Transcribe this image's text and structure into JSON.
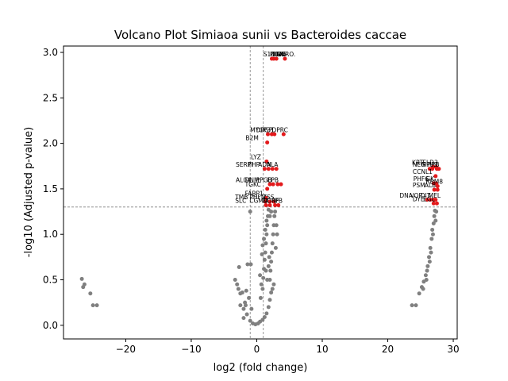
{
  "chart_data": {
    "type": "scatter",
    "title": "Volcano Plot Simiaoa sunii vs Bacteroides caccae",
    "xlabel": "log2 (fold change)",
    "ylabel": "-log10 (Adjusted p-value)",
    "xlim": [
      -29.5,
      30.6
    ],
    "ylim": [
      -0.15,
      3.07
    ],
    "xticks": [
      -20,
      -10,
      0,
      10,
      20,
      30
    ],
    "yticks": [
      0.0,
      0.5,
      1.0,
      1.5,
      2.0,
      2.5,
      3.0
    ],
    "x_tick_labels": [
      "−20",
      "−10",
      "0",
      "10",
      "20",
      "30"
    ],
    "y_tick_labels": [
      "0.0",
      "0.5",
      "1.0",
      "1.5",
      "2.0",
      "2.5",
      "3.0"
    ],
    "grid": false,
    "threshold_lines": {
      "vertical": [
        -1,
        1
      ],
      "horizontal": 1.3
    },
    "colors": {
      "significant": "#e31a1c",
      "non_significant": "#808080",
      "threshold": "#808080"
    },
    "significant_points": [
      {
        "x": 2.3,
        "y": 2.93,
        "label": "S100A6"
      },
      {
        "x": 2.6,
        "y": 2.93,
        "label": "PIGR"
      },
      {
        "x": 3.0,
        "y": 2.93,
        "label": "DCN"
      },
      {
        "x": 4.3,
        "y": 2.93,
        "label": "NCRO."
      },
      {
        "x": 1.7,
        "y": 2.1,
        "label": "MYG"
      },
      {
        "x": 2.3,
        "y": 2.1,
        "label": "DPGP"
      },
      {
        "x": 2.7,
        "y": 2.1,
        "label": "P31"
      },
      {
        "x": 4.1,
        "y": 2.1,
        "label": "DPRC"
      },
      {
        "x": 1.6,
        "y": 2.01,
        "label": "B2M"
      },
      {
        "x": 1.5,
        "y": 1.8,
        "label": "LYZ"
      },
      {
        "x": 1.2,
        "y": 1.72,
        "label": "SERPI"
      },
      {
        "x": 1.8,
        "y": 1.72,
        "label": "FHP"
      },
      {
        "x": 2.4,
        "y": 1.72,
        "label": "ADN"
      },
      {
        "x": 3.0,
        "y": 1.72,
        "label": "ALA"
      },
      {
        "x": 2.0,
        "y": 1.55,
        "label": "AL04"
      },
      {
        "x": 2.5,
        "y": 1.55,
        "label": "DNM"
      },
      {
        "x": 3.2,
        "y": 1.55,
        "label": "PPGB"
      },
      {
        "x": 3.7,
        "y": 1.55,
        "label": "EPB"
      },
      {
        "x": 1.6,
        "y": 1.5,
        "label": "TGKC"
      },
      {
        "x": 1.4,
        "y": 1.4,
        "label": "FABP1"
      },
      {
        "x": 1.3,
        "y": 1.36,
        "label": "TMB"
      },
      {
        "x": 2.0,
        "y": 1.36,
        "label": "PHFN"
      },
      {
        "x": 2.6,
        "y": 1.36,
        "label": "ZSS"
      },
      {
        "x": 1.4,
        "y": 1.32,
        "label": "SLC"
      },
      {
        "x": 2.0,
        "y": 1.32,
        "label": "CGMD"
      },
      {
        "x": 2.8,
        "y": 1.32,
        "label": "NDRF"
      },
      {
        "x": 3.3,
        "y": 1.32,
        "label": "IPB"
      },
      {
        "x": 26.9,
        "y": 1.74,
        "label": "KRT"
      },
      {
        "x": 27.4,
        "y": 1.74,
        "label": "ELD3"
      },
      {
        "x": 26.4,
        "y": 1.72,
        "label": "NEG"
      },
      {
        "x": 26.8,
        "y": 1.72,
        "label": "MPL"
      },
      {
        "x": 27.5,
        "y": 1.72,
        "label": "FRB"
      },
      {
        "x": 27.8,
        "y": 1.72,
        "label": "S"
      },
      {
        "x": 27.3,
        "y": 1.64,
        "label": "CCNL1"
      },
      {
        "x": 27.0,
        "y": 1.56,
        "label": "PHF6"
      },
      {
        "x": 27.4,
        "y": 1.56,
        "label": "GK"
      },
      {
        "x": 27.6,
        "y": 1.53,
        "label": "RBM8"
      },
      {
        "x": 27.1,
        "y": 1.49,
        "label": "PSM"
      },
      {
        "x": 27.6,
        "y": 1.49,
        "label": "ALB"
      },
      {
        "x": 26.0,
        "y": 1.38,
        "label": "DNA"
      },
      {
        "x": 26.5,
        "y": 1.38,
        "label": "VOP"
      },
      {
        "x": 27.0,
        "y": 1.38,
        "label": "DIT"
      },
      {
        "x": 27.3,
        "y": 1.38,
        "label": "MEL"
      },
      {
        "x": 27.0,
        "y": 1.34,
        "label": "DYE"
      },
      {
        "x": 27.5,
        "y": 1.34,
        "label": "EGL"
      }
    ],
    "annotations": [
      {
        "text": "S100A6",
        "x": 1.0,
        "y": 2.955
      },
      {
        "text": "PIGR",
        "x": 2.0,
        "y": 2.955
      },
      {
        "text": "DCN",
        "x": 2.4,
        "y": 2.955
      },
      {
        "text": "NCRO.",
        "x": 3.0,
        "y": 2.955
      },
      {
        "text": "MYG",
        "x": -1.0,
        "y": 2.125
      },
      {
        "text": "DPGP",
        "x": -0.1,
        "y": 2.125
      },
      {
        "text": "P31",
        "x": 1.0,
        "y": 2.125
      },
      {
        "text": "DPRC",
        "x": 2.3,
        "y": 2.125
      },
      {
        "text": "B2M",
        "x": -1.7,
        "y": 2.035
      },
      {
        "text": "LYZ",
        "x": -0.9,
        "y": 1.825
      },
      {
        "text": "SERPI",
        "x": -3.2,
        "y": 1.745
      },
      {
        "text": "FHP",
        "x": -1.3,
        "y": 1.745
      },
      {
        "text": "ADN",
        "x": 0.2,
        "y": 1.745
      },
      {
        "text": "ALA",
        "x": 1.5,
        "y": 1.745
      },
      {
        "text": "AL04",
        "x": -3.2,
        "y": 1.575
      },
      {
        "text": "DNM",
        "x": -1.8,
        "y": 1.575
      },
      {
        "text": "PPGB",
        "x": -0.1,
        "y": 1.575
      },
      {
        "text": "EPB",
        "x": 1.6,
        "y": 1.575
      },
      {
        "text": "TGKC",
        "x": -1.8,
        "y": 1.525
      },
      {
        "text": "FABP1",
        "x": -1.8,
        "y": 1.425
      },
      {
        "text": "TMB",
        "x": -3.3,
        "y": 1.385
      },
      {
        "text": "PHFN",
        "x": -1.1,
        "y": 1.385
      },
      {
        "text": "ZSS",
        "x": 0.9,
        "y": 1.385
      },
      {
        "text": "SLC",
        "x": -3.3,
        "y": 1.345
      },
      {
        "text": "CGMD",
        "x": -1.1,
        "y": 1.345
      },
      {
        "text": "NDRF",
        "x": 0.9,
        "y": 1.345
      },
      {
        "text": "IPB",
        "x": 2.5,
        "y": 1.345
      },
      {
        "text": "KRT",
        "x": 23.7,
        "y": 1.765
      },
      {
        "text": "ELD3",
        "x": 25.3,
        "y": 1.765
      },
      {
        "text": "NEG",
        "x": 23.8,
        "y": 1.745
      },
      {
        "text": "MPL",
        "x": 25.1,
        "y": 1.745
      },
      {
        "text": "FRB",
        "x": 26.1,
        "y": 1.745
      },
      {
        "text": "S",
        "x": 27.0,
        "y": 1.745
      },
      {
        "text": "CCNL1",
        "x": 23.8,
        "y": 1.665
      },
      {
        "text": "PHF6",
        "x": 23.9,
        "y": 1.585
      },
      {
        "text": "GK",
        "x": 25.8,
        "y": 1.585
      },
      {
        "text": "RBM8",
        "x": 25.8,
        "y": 1.555
      },
      {
        "text": "PSM",
        "x": 23.8,
        "y": 1.515
      },
      {
        "text": "ALB",
        "x": 25.6,
        "y": 1.515
      },
      {
        "text": "DNA",
        "x": 21.8,
        "y": 1.405
      },
      {
        "text": "VOP",
        "x": 23.4,
        "y": 1.405
      },
      {
        "text": "DIT",
        "x": 25.0,
        "y": 1.405
      },
      {
        "text": "MEL",
        "x": 26.2,
        "y": 1.405
      },
      {
        "text": "DYE",
        "x": 23.8,
        "y": 1.365
      },
      {
        "text": "EGL",
        "x": 25.4,
        "y": 1.365
      }
    ],
    "non_significant_points": [
      {
        "x": -26.7,
        "y": 0.51
      },
      {
        "x": -26.5,
        "y": 0.42
      },
      {
        "x": -26.3,
        "y": 0.45
      },
      {
        "x": -25.4,
        "y": 0.35
      },
      {
        "x": -25.0,
        "y": 0.22
      },
      {
        "x": -24.4,
        "y": 0.22
      },
      {
        "x": -2.0,
        "y": 0.08
      },
      {
        "x": -1.5,
        "y": 0.12
      },
      {
        "x": -1.0,
        "y": 0.05
      },
      {
        "x": -0.6,
        "y": 0.02
      },
      {
        "x": -0.2,
        "y": 0.01
      },
      {
        "x": 0.2,
        "y": 0.02
      },
      {
        "x": 0.5,
        "y": 0.04
      },
      {
        "x": 0.9,
        "y": 0.06
      },
      {
        "x": 1.2,
        "y": 0.09
      },
      {
        "x": 1.5,
        "y": 0.13
      },
      {
        "x": -2.5,
        "y": 0.22
      },
      {
        "x": -1.8,
        "y": 0.25
      },
      {
        "x": -1.2,
        "y": 0.3
      },
      {
        "x": -0.8,
        "y": 0.18
      },
      {
        "x": 1.8,
        "y": 0.2
      },
      {
        "x": 2.0,
        "y": 0.28
      },
      {
        "x": 2.2,
        "y": 0.36
      },
      {
        "x": -3.3,
        "y": 0.5
      },
      {
        "x": -3.0,
        "y": 0.45
      },
      {
        "x": -2.8,
        "y": 0.4
      },
      {
        "x": -2.5,
        "y": 0.35
      },
      {
        "x": -2.2,
        "y": 0.36
      },
      {
        "x": -1.6,
        "y": 0.38
      },
      {
        "x": -2.7,
        "y": 0.64
      },
      {
        "x": -1.4,
        "y": 0.67
      },
      {
        "x": -0.9,
        "y": 0.67
      },
      {
        "x": -1.0,
        "y": 1.25
      },
      {
        "x": -2.0,
        "y": 0.18
      },
      {
        "x": -1.7,
        "y": 0.22
      },
      {
        "x": 0.5,
        "y": 0.55
      },
      {
        "x": 0.7,
        "y": 0.45
      },
      {
        "x": 0.9,
        "y": 0.4
      },
      {
        "x": 0.6,
        "y": 0.3
      },
      {
        "x": 1.0,
        "y": 0.52
      },
      {
        "x": 1.1,
        "y": 0.62
      },
      {
        "x": 1.2,
        "y": 0.72
      },
      {
        "x": 1.3,
        "y": 0.8
      },
      {
        "x": 1.4,
        "y": 0.9
      },
      {
        "x": 1.5,
        "y": 1.0
      },
      {
        "x": 1.6,
        "y": 1.1
      },
      {
        "x": 1.7,
        "y": 1.2
      },
      {
        "x": 1.8,
        "y": 1.27
      },
      {
        "x": 1.1,
        "y": 0.95
      },
      {
        "x": 1.3,
        "y": 1.05
      },
      {
        "x": 1.5,
        "y": 1.15
      },
      {
        "x": 2.0,
        "y": 0.5
      },
      {
        "x": 2.1,
        "y": 0.6
      },
      {
        "x": 2.2,
        "y": 0.7
      },
      {
        "x": 2.3,
        "y": 0.8
      },
      {
        "x": 2.4,
        "y": 0.9
      },
      {
        "x": 2.5,
        "y": 1.0
      },
      {
        "x": 2.6,
        "y": 1.1
      },
      {
        "x": 2.7,
        "y": 1.2
      },
      {
        "x": 2.8,
        "y": 1.25
      },
      {
        "x": 3.0,
        "y": 1.1
      },
      {
        "x": 3.1,
        "y": 1.0
      },
      {
        "x": 2.9,
        "y": 0.85
      },
      {
        "x": 2.0,
        "y": 1.2
      },
      {
        "x": 2.2,
        "y": 1.25
      },
      {
        "x": 1.4,
        "y": 0.6
      },
      {
        "x": 1.6,
        "y": 0.5
      },
      {
        "x": 1.8,
        "y": 0.65
      },
      {
        "x": 1.9,
        "y": 0.75
      },
      {
        "x": 2.4,
        "y": 0.4
      },
      {
        "x": 2.6,
        "y": 0.45
      },
      {
        "x": 0.8,
        "y": 0.78
      },
      {
        "x": 0.9,
        "y": 0.88
      },
      {
        "x": 23.7,
        "y": 0.22
      },
      {
        "x": 24.3,
        "y": 0.22
      },
      {
        "x": 24.8,
        "y": 0.35
      },
      {
        "x": 25.2,
        "y": 0.42
      },
      {
        "x": 25.5,
        "y": 0.48
      },
      {
        "x": 25.8,
        "y": 0.55
      },
      {
        "x": 26.1,
        "y": 0.65
      },
      {
        "x": 26.3,
        "y": 0.75
      },
      {
        "x": 26.5,
        "y": 0.85
      },
      {
        "x": 26.7,
        "y": 0.95
      },
      {
        "x": 26.8,
        "y": 1.05
      },
      {
        "x": 27.0,
        "y": 1.12
      },
      {
        "x": 27.1,
        "y": 1.2
      },
      {
        "x": 27.2,
        "y": 1.26
      },
      {
        "x": 25.4,
        "y": 0.4
      },
      {
        "x": 25.9,
        "y": 0.5
      },
      {
        "x": 26.0,
        "y": 0.6
      },
      {
        "x": 26.4,
        "y": 0.7
      },
      {
        "x": 26.6,
        "y": 0.8
      },
      {
        "x": 26.9,
        "y": 1.0
      },
      {
        "x": 27.3,
        "y": 1.15
      },
      {
        "x": 27.4,
        "y": 1.25
      }
    ]
  }
}
